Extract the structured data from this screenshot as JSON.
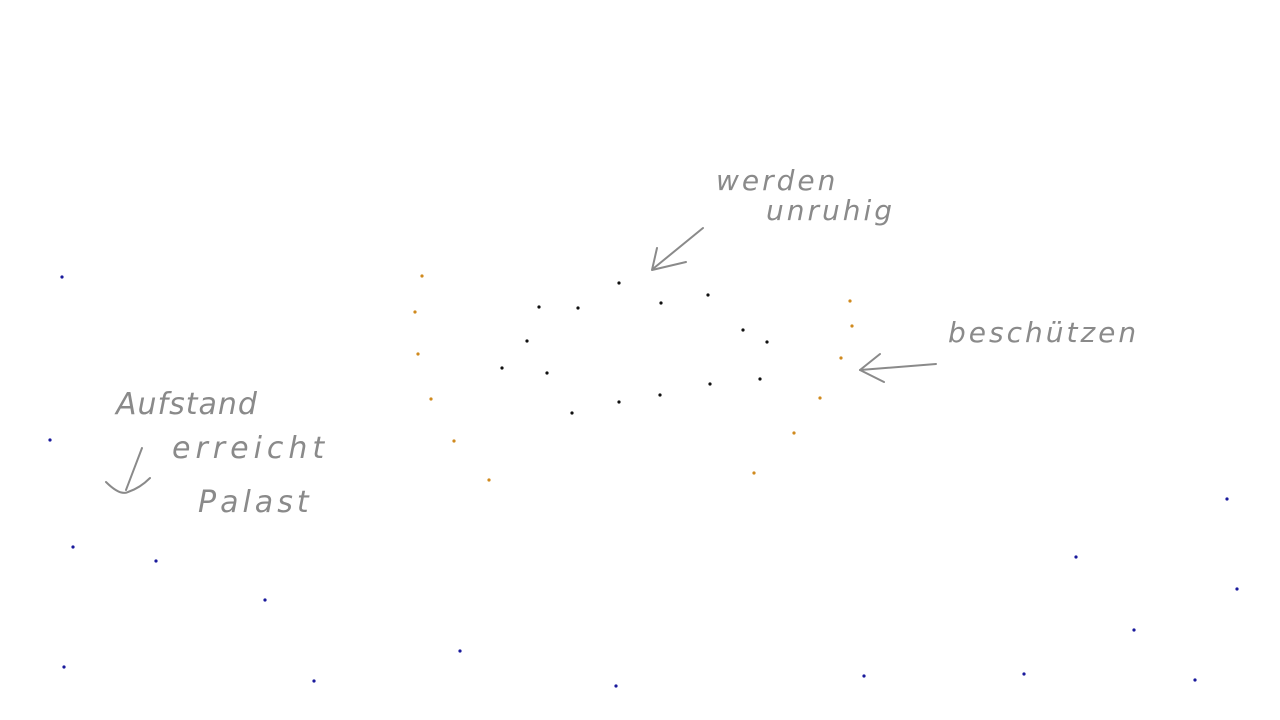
{
  "colors": {
    "background": "#ffffff",
    "ink": "#8a8a8a",
    "group_outer": "#1a1a9c",
    "group_middle": "#d08a1e",
    "group_inner": "#111111"
  },
  "annotations": {
    "aufstand": "Aufstand",
    "erreicht": "erreicht",
    "palast": "Palast",
    "werden": "werden",
    "unruhig": "unruhig",
    "beschuetzen": "beschützen"
  },
  "groups": [
    {
      "name": "",
      "color_key": "group_outer",
      "count": 19
    },
    {
      "name": "",
      "color_key": "group_middle",
      "count": 14
    },
    {
      "name": "",
      "color_key": "group_inner",
      "count": 16
    }
  ]
}
